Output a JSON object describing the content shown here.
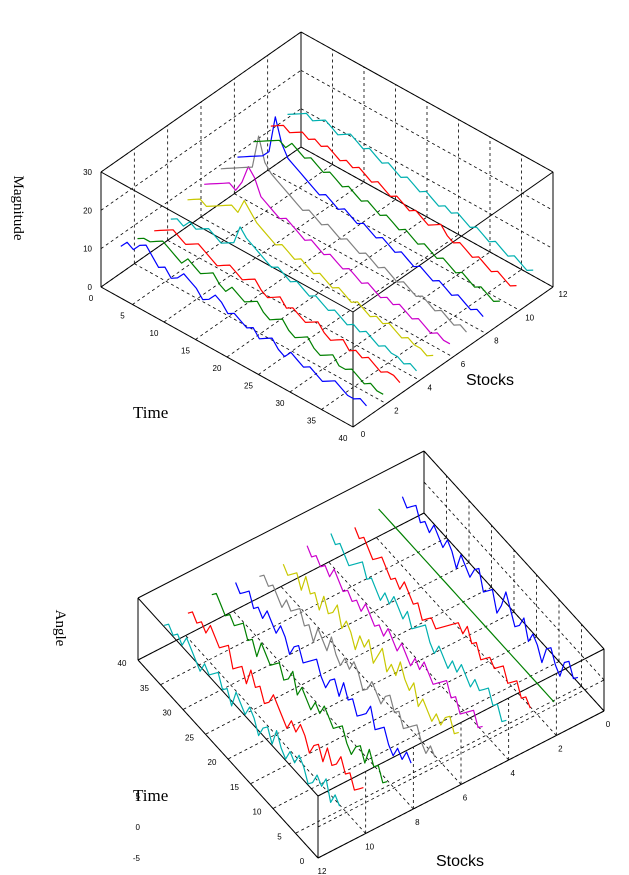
{
  "chart_data": [
    {
      "type": "line",
      "projection": "3d-waterfall",
      "zlabel": "Magnitude",
      "xlabel": "Time",
      "ylabel": "Stocks",
      "z_ticks": [
        "0",
        "10",
        "20",
        "30"
      ],
      "time_ticks": [
        "0",
        "5",
        "10",
        "15",
        "20",
        "25",
        "30",
        "35",
        "40"
      ],
      "stock_ticks": [
        "0",
        "2",
        "4",
        "6",
        "8",
        "10",
        "12"
      ],
      "zlim": [
        0,
        30
      ],
      "time_range": [
        0,
        40
      ],
      "stock_range": [
        0,
        12
      ],
      "grid": true,
      "series": [
        {
          "stock": 1,
          "color": "#0000ff",
          "values": [
            8,
            10,
            9,
            11,
            12,
            10,
            8,
            9,
            7,
            8,
            10,
            9,
            8,
            6,
            7,
            9,
            8,
            6,
            7,
            6,
            5,
            6,
            4,
            5,
            6,
            4,
            3,
            5,
            4,
            3,
            4,
            3,
            2,
            3,
            4,
            3,
            2,
            2,
            3,
            2
          ]
        },
        {
          "stock": 2,
          "color": "#008000",
          "values": [
            7,
            8,
            8,
            9,
            10,
            9,
            8,
            7,
            9,
            8,
            7,
            8,
            9,
            7,
            6,
            8,
            7,
            6,
            7,
            8,
            6,
            5,
            6,
            7,
            5,
            4,
            5,
            6,
            4,
            3,
            4,
            5,
            3,
            3,
            4,
            3,
            2,
            3,
            2,
            2
          ]
        },
        {
          "stock": 3,
          "color": "#ff0000",
          "values": [
            6,
            7,
            8,
            9,
            8,
            7,
            8,
            9,
            8,
            7,
            6,
            7,
            8,
            7,
            6,
            7,
            8,
            6,
            5,
            6,
            7,
            5,
            6,
            5,
            4,
            5,
            6,
            4,
            3,
            4,
            5,
            3,
            4,
            3,
            4,
            3,
            2,
            3,
            3,
            2
          ]
        },
        {
          "stock": 4,
          "color": "#00b0b0",
          "values": [
            6,
            7,
            6,
            8,
            7,
            8,
            9,
            8,
            7,
            8,
            9,
            14,
            12,
            11,
            10,
            9,
            8,
            9,
            8,
            7,
            8,
            7,
            6,
            7,
            6,
            5,
            6,
            5,
            4,
            5,
            4,
            5,
            4,
            3,
            4,
            3,
            3,
            2,
            3,
            2
          ]
        },
        {
          "stock": 5,
          "color": "#c8c800",
          "values": [
            8,
            9,
            10,
            9,
            10,
            11,
            12,
            13,
            12,
            16,
            14,
            12,
            11,
            10,
            9,
            10,
            9,
            8,
            9,
            8,
            7,
            8,
            7,
            6,
            7,
            6,
            5,
            6,
            5,
            4,
            5,
            4,
            5,
            4,
            3,
            4,
            3,
            3,
            2,
            3
          ]
        },
        {
          "stock": 6,
          "color": "#cc00cc",
          "values": [
            9,
            10,
            11,
            12,
            13,
            12,
            15,
            20,
            18,
            14,
            13,
            12,
            11,
            12,
            11,
            10,
            9,
            10,
            9,
            8,
            9,
            8,
            7,
            8,
            7,
            6,
            7,
            6,
            5,
            6,
            5,
            6,
            5,
            4,
            5,
            4,
            3,
            4,
            3,
            3
          ]
        },
        {
          "stock": 7,
          "color": "#808080",
          "values": [
            10,
            11,
            12,
            13,
            14,
            15,
            24,
            18,
            16,
            15,
            14,
            13,
            12,
            11,
            12,
            11,
            10,
            11,
            10,
            9,
            10,
            9,
            8,
            9,
            8,
            7,
            8,
            7,
            6,
            7,
            6,
            5,
            6,
            5,
            4,
            5,
            4,
            3,
            4,
            3
          ]
        },
        {
          "stock": 8,
          "color": "#0000ff",
          "values": [
            10,
            11,
            12,
            13,
            14,
            16,
            26,
            20,
            17,
            16,
            15,
            14,
            13,
            12,
            13,
            12,
            11,
            12,
            11,
            10,
            11,
            10,
            9,
            10,
            9,
            8,
            9,
            8,
            7,
            8,
            7,
            6,
            7,
            6,
            5,
            6,
            5,
            4,
            5,
            4
          ]
        },
        {
          "stock": 9,
          "color": "#008000",
          "values": [
            11,
            12,
            13,
            14,
            15,
            14,
            16,
            15,
            14,
            15,
            14,
            13,
            14,
            13,
            12,
            13,
            12,
            11,
            12,
            11,
            10,
            11,
            10,
            9,
            10,
            9,
            8,
            9,
            8,
            7,
            8,
            7,
            6,
            7,
            6,
            5,
            6,
            5,
            4,
            5
          ]
        },
        {
          "stock": 10,
          "color": "#ff0000",
          "values": [
            12,
            13,
            14,
            13,
            14,
            15,
            14,
            15,
            14,
            15,
            14,
            13,
            14,
            13,
            14,
            13,
            12,
            13,
            12,
            11,
            12,
            11,
            10,
            11,
            10,
            9,
            10,
            11,
            9,
            8,
            9,
            8,
            7,
            8,
            7,
            6,
            7,
            6,
            5,
            6
          ]
        },
        {
          "stock": 11,
          "color": "#00b0b0",
          "values": [
            12,
            13,
            14,
            15,
            14,
            15,
            16,
            15,
            14,
            15,
            16,
            15,
            14,
            15,
            14,
            13,
            14,
            13,
            12,
            13,
            12,
            11,
            12,
            11,
            10,
            11,
            10,
            11,
            10,
            9,
            10,
            9,
            8,
            9,
            8,
            7,
            8,
            7,
            6,
            7
          ]
        }
      ]
    },
    {
      "type": "line",
      "projection": "3d-waterfall",
      "zlabel": "Angle",
      "xlabel": "Time",
      "ylabel": "Stocks",
      "z_ticks": [
        "-5",
        "0",
        "5"
      ],
      "time_ticks": [
        "0",
        "5",
        "10",
        "15",
        "20",
        "25",
        "30",
        "35",
        "40"
      ],
      "stock_ticks": [
        "0",
        "2",
        "4",
        "6",
        "8",
        "10",
        "12"
      ],
      "zlim": [
        -5,
        5
      ],
      "time_range": [
        0,
        40
      ],
      "stock_range": [
        0,
        12
      ],
      "grid": true,
      "series": [
        {
          "stock": 1,
          "color": "#0000ff",
          "values": [
            2,
            1,
            3,
            2,
            -1,
            0,
            2,
            1,
            -2,
            0,
            1,
            -1,
            2,
            0,
            -1,
            1,
            3,
            0,
            -2,
            1,
            0,
            -1,
            2,
            1,
            -1,
            0,
            1,
            -2,
            0,
            1,
            -1,
            0,
            1,
            -1,
            0,
            -1,
            1,
            0,
            -1,
            0
          ]
        },
        {
          "stock": 2,
          "color": "#008000",
          "values": [
            0,
            0,
            0,
            0,
            0,
            0,
            0,
            0,
            0,
            0,
            0,
            0,
            0,
            0,
            0,
            0,
            0,
            0,
            0,
            0,
            0,
            0,
            0,
            0,
            0,
            0,
            0,
            0,
            0,
            0,
            0,
            0,
            0,
            0,
            0,
            0,
            0,
            0,
            0,
            0
          ]
        },
        {
          "stock": 3,
          "color": "#ff0000",
          "values": [
            1,
            2,
            1,
            3,
            2,
            1,
            3,
            2,
            1,
            2,
            1,
            0,
            2,
            1,
            3,
            1,
            2,
            1,
            0,
            -1,
            -2,
            -3,
            -2,
            -3,
            -4,
            -2,
            -3,
            -2,
            -1,
            -3,
            -2,
            -3,
            -2,
            -1,
            -2,
            -3,
            -2,
            -1,
            -2,
            -1
          ]
        },
        {
          "stock": 4,
          "color": "#00b0b0",
          "values": [
            1,
            0,
            2,
            1,
            3,
            2,
            1,
            2,
            0,
            1,
            2,
            0,
            1,
            -1,
            0,
            1,
            -1,
            0,
            2,
            1,
            0,
            -1,
            1,
            -1,
            0,
            1,
            -1,
            0,
            -2,
            -1,
            0,
            -1,
            1,
            0,
            -1,
            -2,
            -1,
            0,
            -1,
            0
          ]
        },
        {
          "stock": 5,
          "color": "#cc00cc",
          "values": [
            2,
            1,
            3,
            2,
            1,
            0,
            2,
            1,
            3,
            2,
            1,
            0,
            1,
            2,
            0,
            1,
            -1,
            0,
            1,
            -1,
            0,
            1,
            -1,
            0,
            -1,
            0,
            1,
            -1,
            0,
            -1,
            0,
            -1,
            0,
            1,
            -1,
            0,
            -1,
            0,
            -1,
            0
          ]
        },
        {
          "stock": 6,
          "color": "#c8c800",
          "values": [
            3,
            2,
            4,
            3,
            1,
            2,
            0,
            1,
            2,
            0,
            3,
            1,
            2,
            4,
            1,
            2,
            0,
            3,
            1,
            -1,
            2,
            0,
            1,
            -2,
            0,
            1,
            -1,
            2,
            0,
            -1,
            1,
            -2,
            0,
            -1,
            1,
            -2,
            0,
            -1,
            -2,
            -1
          ]
        },
        {
          "stock": 7,
          "color": "#808080",
          "values": [
            1,
            2,
            0,
            1,
            3,
            2,
            1,
            0,
            2,
            1,
            3,
            2,
            0,
            1,
            2,
            0,
            -1,
            1,
            2,
            0,
            1,
            -1,
            0,
            2,
            -1,
            0,
            1,
            -2,
            0,
            -1,
            1,
            0,
            -1,
            0,
            -2,
            -1,
            0,
            -1,
            0,
            -1
          ]
        },
        {
          "stock": 8,
          "color": "#0000ff",
          "values": [
            2,
            3,
            1,
            2,
            0,
            1,
            3,
            2,
            1,
            4,
            2,
            1,
            0,
            2,
            1,
            3,
            0,
            2,
            1,
            -1,
            0,
            2,
            1,
            0,
            -1,
            1,
            0,
            -2,
            0,
            1,
            -1,
            0,
            1,
            -1,
            0,
            -1,
            1,
            0,
            -1,
            0
          ]
        },
        {
          "stock": 9,
          "color": "#008000",
          "values": [
            1,
            0,
            2,
            1,
            3,
            0,
            2,
            1,
            -1,
            0,
            2,
            1,
            0,
            1,
            2,
            0,
            1,
            -1,
            0,
            1,
            -1,
            2,
            0,
            -1,
            1,
            0,
            -1,
            0,
            1,
            -2,
            0,
            -1,
            1,
            0,
            -1,
            0,
            -1,
            0,
            1,
            0
          ]
        },
        {
          "stock": 10,
          "color": "#ff0000",
          "values": [
            2,
            1,
            0,
            2,
            1,
            3,
            1,
            0,
            2,
            -1,
            1,
            0,
            -2,
            0,
            1,
            -1,
            0,
            -2,
            -1,
            0,
            1,
            -1,
            -2,
            0,
            -1,
            1,
            -2,
            0,
            -1,
            -2,
            1,
            0,
            -1,
            0,
            1,
            -1,
            0,
            -1,
            0,
            -1
          ]
        },
        {
          "stock": 11,
          "color": "#00b0b0",
          "values": [
            1,
            2,
            0,
            3,
            1,
            2,
            0,
            -1,
            1,
            2,
            0,
            1,
            -1,
            0,
            2,
            -1,
            1,
            0,
            -2,
            0,
            1,
            -1,
            0,
            1,
            -2,
            0,
            -1,
            1,
            0,
            -1,
            0,
            -2,
            -1,
            0,
            1,
            -1,
            0,
            -1,
            0,
            -1
          ]
        }
      ]
    }
  ]
}
